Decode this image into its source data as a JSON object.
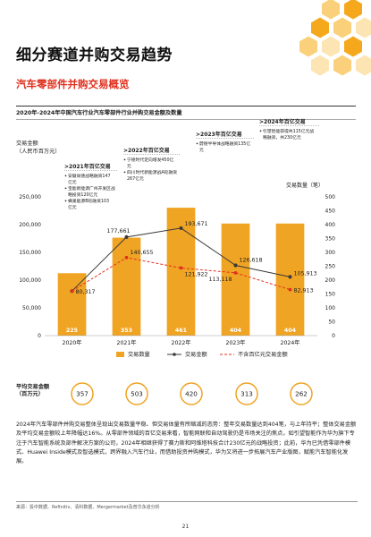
{
  "page": {
    "title": "细分赛道并购交易趋势",
    "subtitle": "汽车零部件并购交易概览",
    "caption": "2020年-2024年中国汽车行业汽车零部件行业并购交易金额及数量",
    "paragraph": "2024年汽车零部件并购交易整体呈现出交易数量平稳、但交易体量有所缩减的态势：整年交易数量达到404笔，与上年持平；整体交易金额及平均交易金额较上年降幅达16%。从零部件领域的百亿交易来看，智能网联和自动驾驶仍是市场关注的焦点，如引望智能作为华为旗下专注于汽车智能系统及部件解决方案的公司，2024年相继获得了赛力斯和阿维塔科技合计230亿元的战略投资；此前，华为已凭借零部件模式、Huawei Inside模式及智选模式，跨界融入汽车行业，而借助投资并购模式，华为又将进一步拓展汽车产业版图，赋能汽车智能化发展。",
    "source": "来源：投中数据、Refinitiv、清科数据、Mergermarket及普华永道分析",
    "page_number": "21"
  },
  "colors": {
    "bar": "#f0a424",
    "bar_dark": "#e8910f",
    "line": "#3a3a3a",
    "dashed": "#e0301e",
    "accent": "#e0301e",
    "hex1": "#f6a81d",
    "hex2": "#fbd07a",
    "hex3": "#fce4b3"
  },
  "chart_data": {
    "type": "bar",
    "categories": [
      "2020年",
      "2021年",
      "2022年",
      "2023年",
      "2024年"
    ],
    "ylabel_left": "交易金额\n（人民币百万元）",
    "ylabel_right": "交易数量（笔）",
    "ylim_left": [
      0,
      250000
    ],
    "ylim_right": [
      0,
      500
    ],
    "left_ticks": [
      "0",
      "50,000",
      "100,000",
      "150,000",
      "200,000",
      "250,000"
    ],
    "right_ticks": [
      "0",
      "50",
      "100",
      "150",
      "200",
      "250",
      "300",
      "350",
      "400",
      "450",
      "500"
    ],
    "series": [
      {
        "name": "交易数量",
        "kind": "bar",
        "axis": "right",
        "values": [
          225,
          353,
          461,
          404,
          404
        ],
        "labels": [
          "225",
          "353",
          "461",
          "404",
          "404"
        ]
      },
      {
        "name": "交易金额",
        "kind": "line",
        "axis": "left",
        "values": [
          80317,
          177661,
          193671,
          126618,
          105913
        ],
        "labels": [
          "80,317",
          "177,661",
          "193,671",
          "126,618",
          "105,913"
        ]
      },
      {
        "name": "不含百亿元交易金额",
        "kind": "dashed",
        "axis": "left",
        "values": [
          80317,
          140655,
          121922,
          113118,
          82913
        ],
        "labels": [
          "",
          "140,655",
          "121,922",
          "113,118",
          "82,913"
        ]
      }
    ],
    "legend_position": "bottom",
    "avg_label": "平均交易金额\n（百万元）",
    "avg_values": [
      "357",
      "503",
      "420",
      "313",
      "262"
    ],
    "annotations": [
      {
        "year": "2021年",
        "title": ">2021年百亿交易",
        "items": [
          "安徽尚德战略融资147亿元",
          "宝能新能源广州开发区战略投资120亿元",
          "蜂巢能源B轮融资103亿元"
        ]
      },
      {
        "year": "2022年",
        "title": ">2022年百亿交易",
        "items": [
          "宁德时代定向增发450亿元",
          "四川时代新能源战A轮融资267亿元"
        ]
      },
      {
        "year": "2023年",
        "title": ">2023年百亿交易",
        "items": [
          "蔚德半导体战略融资135亿元"
        ]
      },
      {
        "year": "2024年",
        "title": ">2024年百亿交易",
        "items": [
          "引望智能获得共115亿元战略融资，共230亿元"
        ]
      }
    ]
  }
}
